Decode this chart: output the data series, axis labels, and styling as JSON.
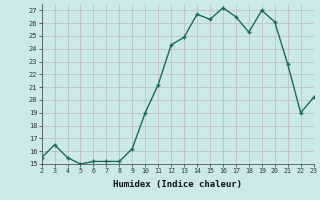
{
  "x": [
    2,
    3,
    4,
    5,
    6,
    7,
    8,
    9,
    10,
    11,
    12,
    13,
    14,
    15,
    16,
    17,
    18,
    19,
    20,
    21,
    22,
    23
  ],
  "y": [
    15.5,
    16.5,
    15.5,
    15.0,
    15.2,
    15.2,
    15.2,
    16.2,
    19.0,
    21.2,
    24.3,
    24.9,
    26.7,
    26.3,
    27.2,
    26.5,
    25.3,
    27.0,
    26.1,
    22.8,
    19.0,
    20.2
  ],
  "xlabel": "Humidex (Indice chaleur)",
  "ylim": [
    15,
    27.5
  ],
  "xlim": [
    2,
    23
  ],
  "yticks": [
    15,
    16,
    17,
    18,
    19,
    20,
    21,
    22,
    23,
    24,
    25,
    26,
    27
  ],
  "xticks": [
    2,
    3,
    4,
    5,
    6,
    7,
    8,
    9,
    10,
    11,
    12,
    13,
    14,
    15,
    16,
    17,
    18,
    19,
    20,
    21,
    22,
    23
  ],
  "line_color": "#1a6b5a",
  "bg_color": "#cce9e9",
  "grid_color_h": "#c0b8c8",
  "grid_color_v": "#c0b8c8",
  "marker_size": 2.5,
  "line_width": 1.0
}
